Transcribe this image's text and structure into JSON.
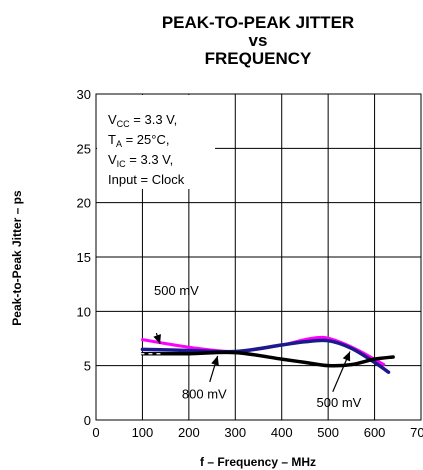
{
  "chart_data": {
    "type": "line",
    "title": [
      "PEAK-TO-PEAK JITTER",
      "vs",
      "FREQUENCY"
    ],
    "xlabel": "f – Frequency – MHz",
    "ylabel": "Peak-to-Peak Jitter – ps",
    "xlim": [
      0,
      700
    ],
    "ylim": [
      0,
      30
    ],
    "xticks": [
      0,
      100,
      200,
      300,
      400,
      500,
      600,
      700
    ],
    "yticks": [
      0,
      5,
      10,
      15,
      20,
      25,
      30
    ],
    "grid": true,
    "conditions": [
      {
        "main": "V",
        "sub": "CC",
        "rest": " = 3.3 V,"
      },
      {
        "main": "T",
        "sub": "A",
        "rest": " = 25°C,"
      },
      {
        "main": "V",
        "sub": "IC",
        "rest": " = 3.3 V,"
      },
      {
        "main": "Input = Clock",
        "sub": "",
        "rest": ""
      }
    ],
    "series": [
      {
        "color": "#ff00ff",
        "width": 3,
        "x": [
          100,
          200,
          300,
          400,
          450,
          490,
          530,
          570,
          620
        ],
        "y": [
          7.4,
          6.7,
          6.3,
          6.9,
          7.4,
          7.6,
          7.1,
          6.3,
          5.1
        ]
      },
      {
        "color": "#1a1a8c",
        "width": 3.5,
        "x": [
          100,
          200,
          300,
          400,
          450,
          500,
          550,
          600,
          630
        ],
        "y": [
          6.5,
          6.4,
          6.3,
          6.9,
          7.2,
          7.3,
          6.6,
          5.3,
          4.4
        ]
      },
      {
        "color": "#000000",
        "width": 3.5,
        "dashed_start": true,
        "x": [
          100,
          200,
          300,
          400,
          450,
          500,
          550,
          600,
          640
        ],
        "y": [
          6.1,
          6.1,
          6.2,
          5.6,
          5.3,
          5.0,
          5.1,
          5.6,
          5.8
        ]
      }
    ],
    "annotations": [
      {
        "text": "500 mV",
        "tx": 125,
        "ty": 11.5,
        "ax": 130,
        "ay": 8.0,
        "hx": 138,
        "hy": 7.0
      },
      {
        "text": "800 mV",
        "tx": 185,
        "ty": 2.0,
        "ax": 245,
        "ay": 3.5,
        "hx": 262,
        "hy": 5.9
      },
      {
        "text": "500 mV",
        "tx": 475,
        "ty": 1.2,
        "ax": 510,
        "ay": 2.6,
        "hx": 547,
        "hy": 6.3
      }
    ]
  }
}
